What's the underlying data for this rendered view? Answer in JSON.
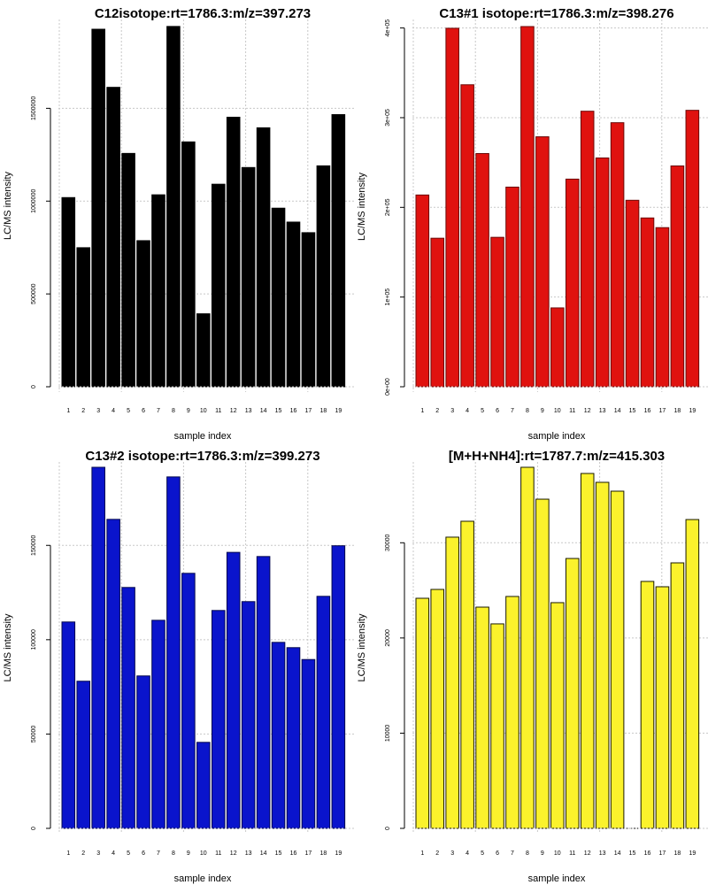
{
  "chart_data": [
    {
      "type": "bar",
      "panel": "top-left",
      "title": "C12isotope:rt=1786.3:m/z=397.273",
      "xlabel": "sample index",
      "ylabel": "LC/MS intensity",
      "categories": [
        "1",
        "2",
        "3",
        "4",
        "5",
        "6",
        "7",
        "8",
        "9",
        "10",
        "11",
        "12",
        "13",
        "14",
        "15",
        "16",
        "17",
        "18",
        "19"
      ],
      "values": [
        1019000,
        749000,
        1926000,
        1613000,
        1257000,
        787000,
        1034000,
        1941000,
        1319000,
        393000,
        1091000,
        1452000,
        1181000,
        1395000,
        962000,
        887000,
        830000,
        1190000,
        1466000
      ],
      "yticks": [
        0,
        500000,
        1000000,
        1500000
      ],
      "ytick_labels": [
        "0",
        "500000",
        "1000000",
        "1500000"
      ],
      "ylim": [
        0,
        1950000
      ],
      "grid": true,
      "bar_color": "#000000",
      "bar_border": "#000000"
    },
    {
      "type": "bar",
      "panel": "top-right",
      "title": "C13#1 isotope:rt=1786.3:m/z=398.276",
      "xlabel": "sample index",
      "ylabel": "LC/MS intensity",
      "categories": [
        "1",
        "2",
        "3",
        "4",
        "5",
        "6",
        "7",
        "8",
        "9",
        "10",
        "11",
        "12",
        "13",
        "14",
        "15",
        "16",
        "17",
        "18",
        "19"
      ],
      "values": [
        213800,
        165600,
        399700,
        336700,
        260000,
        166600,
        222600,
        401600,
        278700,
        87900,
        231500,
        307200,
        255100,
        294400,
        207900,
        188200,
        177400,
        246200,
        308200
      ],
      "yticks": [
        0,
        100000,
        200000,
        300000,
        400000
      ],
      "ytick_labels": [
        "0e+00",
        "1e+05",
        "2e+05",
        "3e+05",
        "4e+05"
      ],
      "ylim": [
        0,
        401600
      ],
      "grid": true,
      "bar_color": "#e0120f",
      "bar_border": "#6b0a08"
    },
    {
      "type": "bar",
      "panel": "bottom-left",
      "title": "C13#2 isotope:rt=1786.3:m/z=399.273",
      "xlabel": "sample index",
      "ylabel": "LC/MS intensity",
      "categories": [
        "1",
        "2",
        "3",
        "4",
        "5",
        "6",
        "7",
        "8",
        "9",
        "10",
        "11",
        "12",
        "13",
        "14",
        "15",
        "16",
        "17",
        "18",
        "19"
      ],
      "values": [
        109400,
        78000,
        191400,
        163800,
        127700,
        80800,
        110300,
        186300,
        135200,
        45600,
        115500,
        146300,
        120200,
        144100,
        98600,
        95800,
        89500,
        123000,
        149800
      ],
      "yticks": [
        0,
        50000,
        100000,
        150000
      ],
      "ytick_labels": [
        "0",
        "50000",
        "100000",
        "150000"
      ],
      "ylim": [
        0,
        191400
      ],
      "grid": true,
      "bar_color": "#0a14cc",
      "bar_border": "#04084f"
    },
    {
      "type": "bar",
      "panel": "bottom-right",
      "title": "[M+H+NH4]:rt=1787.7:m/z=415.303",
      "xlabel": "sample index",
      "ylabel": "LC/MS intensity",
      "categories": [
        "1",
        "2",
        "3",
        "4",
        "5",
        "6",
        "7",
        "8",
        "9",
        "10",
        "11",
        "12",
        "13",
        "14",
        "15",
        "16",
        "17",
        "18",
        "19"
      ],
      "values": [
        24170,
        25100,
        30590,
        32260,
        23240,
        21480,
        24360,
        37930,
        34580,
        23710,
        28350,
        37280,
        36350,
        35420,
        0,
        25940,
        25380,
        27890,
        32440
      ],
      "yticks": [
        0,
        10000,
        20000,
        30000
      ],
      "ytick_labels": [
        "0",
        "10000",
        "20000",
        "30000"
      ],
      "ylim": [
        0,
        37930
      ],
      "grid": true,
      "bar_color": "#fbf22c",
      "bar_border": "#1a1a00"
    }
  ]
}
